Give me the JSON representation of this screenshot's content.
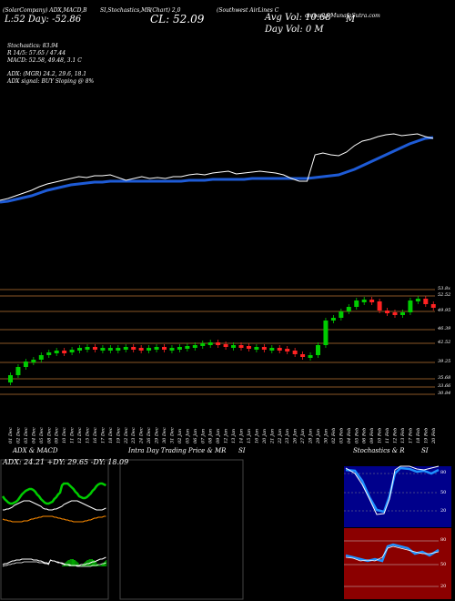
{
  "header": {
    "line1": "(SolarCompany) ADX,MACD,B",
    "line2": "L:52   Day: -52.86",
    "stoch_header": "SI,Stochastics,MR",
    "close_small": "(Chart) 2,0",
    "close": "CL: 52.09",
    "company": "(Southwest AirLines C",
    "company2": "ompany) MunafaSutra.com",
    "avg_vol": "Avg Vol: 10.68",
    "avg_vol_suffix": "M",
    "day_vol": "Day Vol: 0   M"
  },
  "indicators": {
    "stochastics": "Stochastics: 83.94",
    "stoch_r": "R   14/5: 57.65 / 47.44",
    "macd": "MACD: 52.58, 49.48, 3.1 C",
    "adx": "ADX:                (MGR) 24.2, 29.6, 18.1",
    "adx_signal": "ADX  signal:               BUY Sloping @ 8%"
  },
  "price_levels": [
    "53.8x",
    "52.52",
    "49.95",
    "46.39",
    "42.52",
    "39.25",
    "35.68",
    "33.66",
    "30.84"
  ],
  "dates": [
    "01 Dec",
    "02 Dec",
    "03 Dec",
    "04 Dec",
    "05 Dec",
    "08 Dec",
    "09 Dec",
    "10 Dec",
    "11 Dec",
    "12 Dec",
    "15 Dec",
    "16 Dec",
    "17 Dec",
    "18 Dec",
    "19 Dec",
    "22 Dec",
    "23 Dec",
    "24 Dec",
    "26 Dec",
    "29 Dec",
    "30 Dec",
    "31 Dec",
    "02 Jan",
    "05 Jan",
    "06 Jan",
    "07 Jan",
    "08 Jan",
    "09 Jan",
    "12 Jan",
    "13 Jan",
    "14 Jan",
    "15 Jan",
    "16 Jan",
    "20 Jan",
    "21 Jan",
    "22 Jan",
    "23 Jan",
    "26 Jan",
    "27 Jan",
    "28 Jan",
    "29 Jan",
    "30 Jan",
    "02 Feb",
    "03 Feb",
    "04 Feb",
    "05 Feb",
    "06 Feb",
    "09 Feb",
    "10 Feb",
    "11 Feb",
    "12 Feb",
    "13 Feb",
    "17 Feb",
    "18 Feb",
    "19 Feb",
    "20 Feb"
  ],
  "panels": {
    "adx_title": "ADX  & MACD",
    "adx_values": "ADX: 24.21  +DY: 29.65  -DY: 18.09",
    "intraday_title": "Intra  Day Trading Price  & MR",
    "intraday_suffix": "SI",
    "stoch_title": "Stochastics & R",
    "stoch_suffix": "SI",
    "stoch_ticks": [
      "80",
      "50",
      "20"
    ],
    "rsi_ticks": [
      "80",
      "50",
      "20"
    ]
  },
  "colors": {
    "price_line": "#ffffff",
    "ma_line": "#1e5bd6",
    "candle_up": "#00cc00",
    "candle_down": "#ff2222",
    "level_line": "#b87333",
    "stoch_bg": "#00008b",
    "rsi_bg": "#8b0000",
    "adx_line": "#00cc00",
    "macd_line": "#ff8c00"
  }
}
